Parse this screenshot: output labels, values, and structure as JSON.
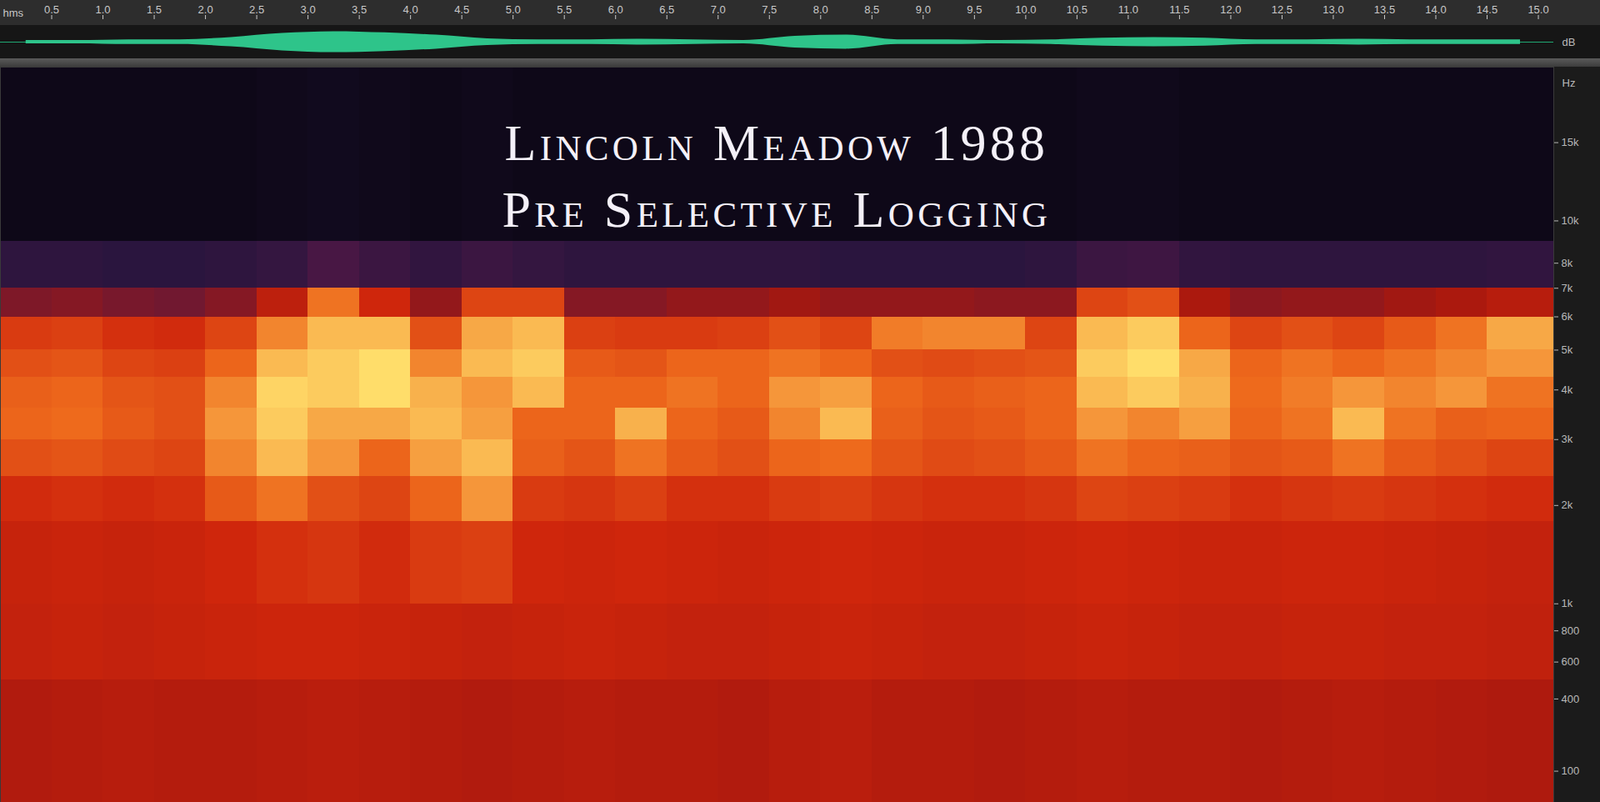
{
  "chart_data": {
    "type": "spectrogram",
    "title": "Lincoln Meadow 1988",
    "subtitle": "Pre Selective Logging",
    "x_label": "hms",
    "y_label": "Hz",
    "xlim": [
      0,
      15.15
    ],
    "xticks": [
      0.5,
      {
        "value": 1,
        "label": "1.0"
      },
      1.5,
      {
        "value": 2,
        "label": "2.0"
      },
      2.5,
      {
        "value": 3,
        "label": "3.0"
      },
      3.5,
      {
        "value": 4,
        "label": "4.0"
      },
      4.5,
      {
        "value": 5,
        "label": "5.0"
      },
      5.5,
      {
        "value": 6,
        "label": "6.0"
      },
      6.5,
      {
        "value": 7,
        "label": "7.0"
      },
      7.5,
      {
        "value": 8,
        "label": "8.0"
      },
      8.5,
      {
        "value": 9,
        "label": "9.0"
      },
      9.5,
      {
        "value": 10,
        "label": "10.0"
      },
      10.5,
      {
        "value": 11,
        "label": "11.0"
      },
      11.5,
      {
        "value": 12,
        "label": "12.0"
      },
      12.5,
      {
        "value": 13,
        "label": "13.0"
      },
      13.5,
      {
        "value": 14,
        "label": "14.0"
      },
      14.5,
      {
        "value": 15,
        "label": "15.0"
      }
    ],
    "ylim": [
      0,
      22050
    ],
    "yticks": [
      100,
      400,
      600,
      800,
      {
        "value": 1000,
        "label": "1k"
      },
      {
        "value": 2000,
        "label": "2k"
      },
      {
        "value": 3000,
        "label": "3k"
      },
      {
        "value": 4000,
        "label": "4k"
      },
      {
        "value": 5000,
        "label": "5k"
      },
      {
        "value": 6000,
        "label": "6k"
      },
      {
        "value": 7000,
        "label": "7k"
      },
      {
        "value": 8000,
        "label": "8k"
      },
      {
        "value": 10000,
        "label": "10k"
      },
      {
        "value": 15000,
        "label": "15k"
      }
    ],
    "time_bins": [
      0,
      0.5,
      1,
      1.5,
      2,
      2.5,
      3,
      3.5,
      4,
      4.5,
      5,
      5.5,
      6,
      6.5,
      7,
      7.5,
      8,
      8.5,
      9,
      9.5,
      10,
      10.5,
      11,
      11.5,
      12,
      12.5,
      13,
      13.5,
      14,
      14.5,
      15.15
    ],
    "freq_bins": [
      0,
      500,
      1000,
      1800,
      2400,
      3000,
      3600,
      4300,
      5000,
      6000,
      7000,
      9000,
      22050
    ],
    "cells": [
      [
        5.4,
        5.5,
        5.6,
        5.5,
        5.5,
        5.6,
        5.7,
        5.6,
        5.5,
        5.4,
        5.5,
        5.6,
        5.5,
        5.5,
        5.4,
        5.6,
        5.7,
        5.5,
        5.5,
        5.4,
        5.5,
        5.6,
        5.5,
        5.5,
        5.4,
        5.5,
        5.6,
        5.5,
        5.4,
        5.3
      ],
      [
        6.0,
        6.1,
        6.0,
        6.1,
        6.2,
        6.3,
        6.3,
        6.2,
        6.1,
        6.0,
        6.1,
        6.2,
        6.1,
        6.0,
        6.0,
        6.1,
        6.2,
        6.1,
        6.0,
        6.0,
        6.1,
        6.2,
        6.1,
        6.0,
        6.0,
        6.1,
        6.1,
        6.0,
        6.0,
        5.9
      ],
      [
        6.1,
        6.2,
        6.1,
        6.2,
        6.4,
        6.6,
        6.7,
        6.5,
        6.8,
        6.9,
        6.4,
        6.3,
        6.4,
        6.3,
        6.2,
        6.3,
        6.4,
        6.3,
        6.2,
        6.2,
        6.3,
        6.4,
        6.3,
        6.2,
        6.2,
        6.3,
        6.3,
        6.2,
        6.1,
        6.0
      ],
      [
        6.5,
        6.6,
        6.5,
        6.6,
        7.4,
        7.8,
        7.2,
        7.0,
        7.6,
        8.2,
        6.8,
        6.7,
        6.9,
        6.6,
        6.6,
        6.8,
        6.9,
        6.7,
        6.6,
        6.6,
        6.7,
        7.0,
        6.9,
        6.8,
        6.6,
        6.7,
        6.8,
        6.7,
        6.6,
        6.5
      ],
      [
        7.2,
        7.3,
        7.1,
        7.0,
        8.0,
        8.6,
        8.2,
        7.6,
        8.3,
        8.6,
        7.5,
        7.3,
        7.8,
        7.4,
        7.2,
        7.6,
        7.7,
        7.3,
        7.1,
        7.2,
        7.4,
        7.8,
        7.6,
        7.5,
        7.3,
        7.4,
        7.8,
        7.4,
        7.2,
        7.0
      ],
      [
        7.6,
        7.7,
        7.4,
        7.2,
        8.2,
        8.8,
        8.4,
        8.4,
        8.6,
        8.3,
        7.6,
        7.6,
        8.5,
        7.6,
        7.4,
        8.0,
        8.6,
        7.5,
        7.3,
        7.4,
        7.6,
        8.2,
        8.0,
        8.3,
        7.6,
        7.8,
        8.6,
        7.8,
        7.5,
        7.6
      ],
      [
        7.5,
        7.6,
        7.3,
        7.2,
        8.0,
        8.9,
        8.8,
        9.0,
        8.5,
        8.2,
        8.6,
        7.6,
        7.6,
        7.8,
        7.6,
        8.2,
        8.3,
        7.6,
        7.4,
        7.5,
        7.6,
        8.6,
        8.8,
        8.5,
        7.7,
        7.9,
        8.2,
        8.0,
        8.2,
        7.8
      ],
      [
        7.2,
        7.3,
        7.0,
        6.9,
        7.6,
        8.6,
        8.8,
        9.0,
        8.0,
        8.6,
        8.8,
        7.4,
        7.3,
        7.6,
        7.6,
        7.8,
        7.6,
        7.2,
        7.1,
        7.2,
        7.3,
        8.8,
        9.0,
        8.4,
        7.6,
        7.8,
        7.6,
        7.8,
        8.0,
        8.2
      ],
      [
        6.8,
        6.9,
        6.6,
        6.5,
        7.0,
        8.0,
        8.6,
        8.6,
        7.2,
        8.4,
        8.6,
        6.9,
        6.8,
        6.8,
        6.9,
        7.2,
        7.0,
        7.9,
        8.0,
        8.0,
        7.0,
        8.6,
        8.8,
        7.6,
        7.0,
        7.2,
        7.0,
        7.4,
        7.8,
        8.4
      ],
      [
        4.5,
        4.6,
        4.4,
        4.3,
        4.6,
        5.8,
        7.8,
        6.4,
        4.8,
        7.0,
        7.0,
        4.6,
        4.6,
        4.8,
        4.8,
        5.0,
        4.8,
        4.8,
        4.8,
        4.7,
        4.7,
        7.0,
        7.2,
        5.2,
        4.7,
        4.8,
        4.8,
        5.0,
        5.2,
        5.6
      ],
      [
        2.8,
        2.8,
        2.7,
        2.7,
        2.8,
        3.0,
        3.6,
        3.2,
        2.9,
        3.2,
        3.0,
        2.8,
        2.8,
        2.8,
        2.8,
        2.8,
        2.7,
        2.7,
        2.7,
        2.7,
        2.8,
        3.2,
        3.3,
        2.9,
        2.8,
        2.8,
        2.8,
        2.8,
        2.8,
        2.9
      ],
      [
        1.2,
        1.2,
        1.2,
        1.2,
        1.2,
        1.3,
        1.4,
        1.3,
        1.2,
        1.3,
        1.2,
        1.2,
        1.2,
        1.2,
        1.2,
        1.2,
        1.2,
        1.2,
        1.2,
        1.2,
        1.2,
        1.3,
        1.3,
        1.2,
        1.2,
        1.2,
        1.2,
        1.2,
        1.2,
        1.2
      ]
    ],
    "waveform": {
      "label": "dB",
      "ylim": [
        -1,
        1
      ],
      "values": [
        0.1,
        0.1,
        0.14,
        0.14,
        0.28,
        0.52,
        0.63,
        0.56,
        0.42,
        0.2,
        0.14,
        0.14,
        0.17,
        0.14,
        0.1,
        0.35,
        0.42,
        0.14,
        0.14,
        0.1,
        0.14,
        0.24,
        0.28,
        0.24,
        0.14,
        0.14,
        0.17,
        0.14,
        0.14,
        0.14
      ]
    }
  }
}
